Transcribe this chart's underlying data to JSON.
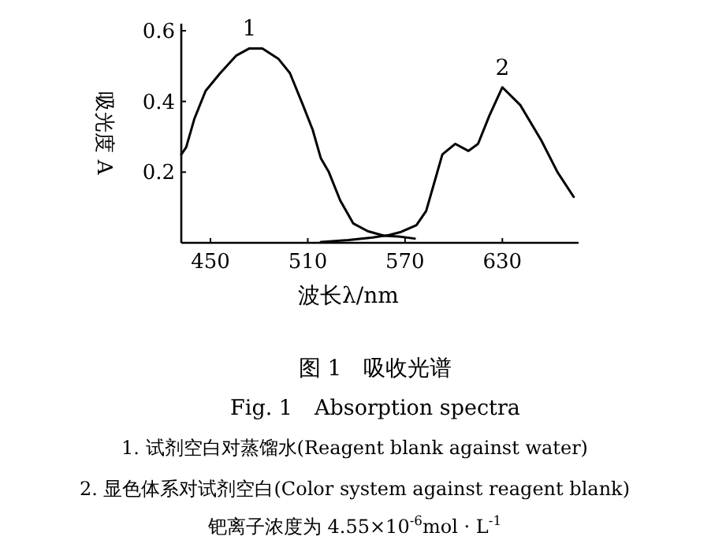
{
  "chart_data": {
    "type": "line",
    "title": "图 1　吸收光谱",
    "subtitle": "Fig. 1　Absorption spectra",
    "xlabel": "波长λ/nm",
    "ylabel": "吸光度 A",
    "xlim": [
      432,
      677
    ],
    "ylim": [
      0,
      0.62
    ],
    "xticks": [
      450,
      510,
      570,
      630
    ],
    "yticks": [
      0.2,
      0.4,
      0.6
    ],
    "grid": false,
    "marker": "none",
    "line_style": "solid",
    "series": [
      {
        "color": "#000000",
        "x": [
          432,
          435,
          440,
          447,
          456,
          466,
          474,
          482,
          492,
          499,
          507,
          513,
          518,
          523,
          530,
          538,
          547,
          557,
          566,
          576
        ],
        "values": [
          0.25,
          0.27,
          0.35,
          0.43,
          0.48,
          0.53,
          0.55,
          0.55,
          0.52,
          0.48,
          0.39,
          0.32,
          0.24,
          0.2,
          0.12,
          0.055,
          0.033,
          0.02,
          0.018,
          0.012
        ]
      },
      {
        "color": "#000000",
        "x": [
          518,
          535,
          550,
          560,
          567,
          577,
          583,
          588,
          593,
          601,
          609,
          615,
          622,
          630,
          641,
          654,
          664,
          674
        ],
        "values": [
          0.002,
          0.008,
          0.015,
          0.022,
          0.03,
          0.05,
          0.09,
          0.17,
          0.25,
          0.28,
          0.26,
          0.28,
          0.36,
          0.44,
          0.39,
          0.29,
          0.2,
          0.13
        ]
      }
    ],
    "annotations": [
      {
        "text": "1",
        "x": 474,
        "y": 0.55
      },
      {
        "text": "2",
        "x": 630,
        "y": 0.44
      },
      "1. 试剂空白对蒸馏水(Reagent blank against water)",
      "2. 显色体系对试剂空白(Color system against reagent blank)",
      "钯离子浓度为 4.55×10$^{-6}$mol · L$^{-1}$"
    ]
  }
}
